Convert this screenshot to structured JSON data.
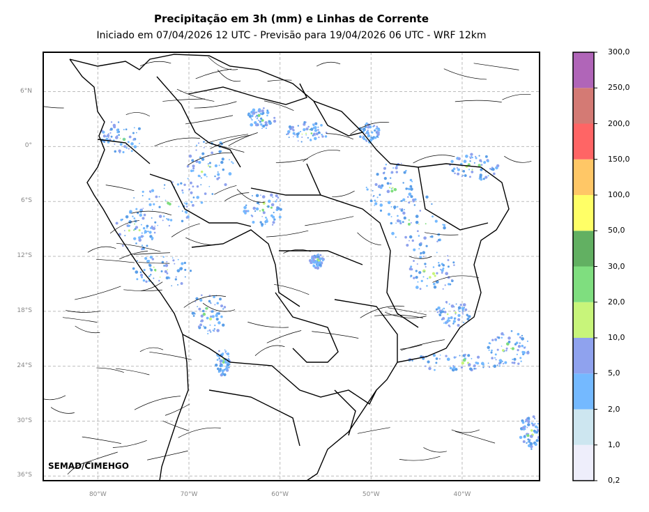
{
  "header": {
    "title": "Precipitação em 3h (mm) e Linhas de Corrente",
    "subtitle": "Iniciado em 07/04/2026 12 UTC - Previsão para 19/04/2026 06 UTC - WRF 12km"
  },
  "map": {
    "lat_ticks": [
      "6°N",
      "0°",
      "6°S",
      "12°S",
      "18°S",
      "24°S",
      "30°S",
      "36°S"
    ],
    "lon_ticks": [
      "80°W",
      "70°W",
      "60°W",
      "50°W",
      "40°W"
    ],
    "lon_range": [
      -86,
      -31.5
    ],
    "lat_range": [
      -36.5,
      10.3
    ],
    "grid": true,
    "credit": "SEMAD/CIMEHGO"
  },
  "colorbar": {
    "labels": [
      "0,2",
      "1,0",
      "2,0",
      "5,0",
      "10,0",
      "20,0",
      "30,0",
      "50,0",
      "100,0",
      "150,0",
      "200,0",
      "250,0",
      "300,0"
    ],
    "colors": [
      "#eeeefb",
      "#cde6f0",
      "#74b9ff",
      "#8fa2ee",
      "#c8f57a",
      "#7fde7f",
      "#62b062",
      "#ffff66",
      "#ffc766",
      "#ff6565",
      "#d47a74",
      "#b065b8"
    ]
  }
}
